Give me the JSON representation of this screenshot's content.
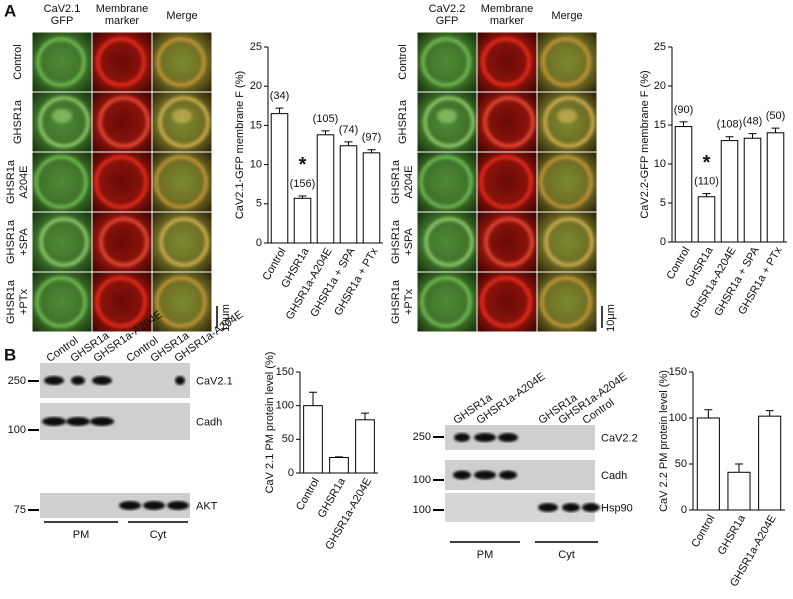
{
  "panel_labels": [
    "A",
    "B"
  ],
  "microscopy": [
    {
      "columns": [
        [
          "CaV2.1",
          "GFP"
        ],
        [
          "Membrane",
          "marker"
        ],
        [
          "Merge"
        ]
      ],
      "rows": [
        [
          "Control"
        ],
        [
          "GHSR1a"
        ],
        [
          "GHSR1a",
          "A204E"
        ],
        [
          "GHSR1a",
          "+SPA"
        ],
        [
          "GHSR1a",
          "+PTx"
        ]
      ],
      "scale_bar": "10μm"
    },
    {
      "columns": [
        [
          "CaV2.2",
          "GFP"
        ],
        [
          "Membrane",
          "marker"
        ],
        [
          "Merge"
        ]
      ],
      "rows": [
        [
          "Control"
        ],
        [
          "GHSR1a"
        ],
        [
          "GHSR1a",
          "A204E"
        ],
        [
          "GHSR1a",
          "+SPA"
        ],
        [
          "GHSR1a",
          "+PTx"
        ]
      ],
      "scale_bar": "10μm"
    }
  ],
  "blots": [
    {
      "lanes": [
        "Control",
        "GHSR1a",
        "GHSR1a-A204E",
        "Control",
        "GHSR1a",
        "GHSR1a-A204E"
      ],
      "markers": [
        250,
        100,
        75
      ],
      "bands": [
        "CaV2.1",
        "Cadh",
        "AKT"
      ],
      "groups": [
        "PM",
        "Cyt"
      ]
    },
    {
      "lanes": [
        "GHSR1a",
        "GHSR1a-A204E",
        "GHSR1a",
        "GHSR1a-A204E",
        "Control"
      ],
      "markers": [
        250,
        100,
        100
      ],
      "bands": [
        "CaV2.2",
        "Cadh",
        "Hsp90"
      ],
      "groups": [
        "PM",
        "Cyt"
      ]
    }
  ],
  "chart_data": [
    {
      "type": "bar",
      "y_label": "CaV2.1-GFP membrane F (%)",
      "categories": [
        "Control",
        "GHSR1a",
        "GHSR1a-A204E",
        "GHSR1a + SPA",
        "GHSR1a + PTx"
      ],
      "values": [
        16.5,
        5.7,
        13.8,
        12.4,
        11.5
      ],
      "errors": [
        0.7,
        0.3,
        0.5,
        0.5,
        0.4
      ],
      "n_labels": [
        "(34)",
        "(156)",
        "(105)",
        "(74)",
        "(97)"
      ],
      "annotation": {
        "text": "*",
        "category": "GHSR1a"
      },
      "ylim": [
        0,
        25
      ],
      "yticks": [
        0,
        5,
        10,
        15,
        20,
        25
      ],
      "color": "#ffffff"
    },
    {
      "type": "bar",
      "y_label": "CaV2.2-GFP membrane F (%)",
      "categories": [
        "Control",
        "GHSR1a",
        "GHSR1a-A204E",
        "GHSR1a + SPA",
        "GHSR1a + PTx"
      ],
      "values": [
        14.8,
        5.8,
        13.0,
        13.3,
        14.0
      ],
      "errors": [
        0.6,
        0.4,
        0.5,
        0.6,
        0.6
      ],
      "n_labels": [
        "(90)",
        "(110)",
        "(108)",
        "(48)",
        "(50)"
      ],
      "annotation": {
        "text": "*",
        "category": "GHSR1a"
      },
      "ylim": [
        0,
        25
      ],
      "yticks": [
        0,
        5,
        10,
        15,
        20,
        25
      ],
      "color": "#ffffff"
    },
    {
      "type": "bar",
      "y_label": "CaV 2.1 PM protein level (%)",
      "categories": [
        "Control",
        "GHSR1a",
        "GHSR1a-A204E"
      ],
      "values": [
        100,
        23,
        79
      ],
      "errors": [
        20,
        1,
        10
      ],
      "ylim": [
        0,
        150
      ],
      "yticks": [
        0,
        50,
        100,
        150
      ],
      "color": "#ffffff"
    },
    {
      "type": "bar",
      "y_label": "CaV 2.2 PM protein level (%)",
      "categories": [
        "Control",
        "GHSR1a",
        "GHSR1a-A204E"
      ],
      "values": [
        100,
        41,
        102
      ],
      "errors": [
        9,
        9,
        6
      ],
      "ylim": [
        0,
        150
      ],
      "yticks": [
        0,
        50,
        100,
        150
      ],
      "color": "#ffffff"
    }
  ]
}
